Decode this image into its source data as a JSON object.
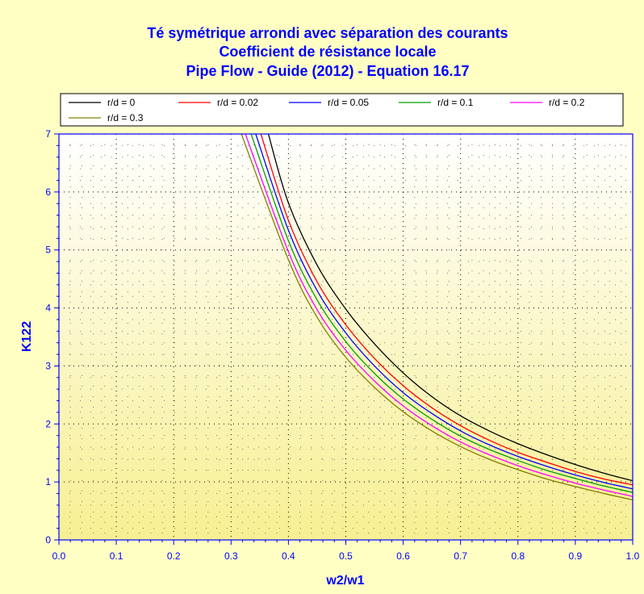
{
  "chart_data": {
    "type": "line",
    "title": [
      "Té symétrique arrondi avec séparation des courants",
      "Coefficient de résistance locale",
      "Pipe Flow - Guide (2012) - Equation 16.17"
    ],
    "xlabel": "w2/w1",
    "ylabel": "K122",
    "xlim": [
      0,
      1
    ],
    "ylim": [
      0,
      7
    ],
    "xticks": [
      "0.0",
      "0.1",
      "0.2",
      "0.3",
      "0.4",
      "0.5",
      "0.6",
      "0.7",
      "0.8",
      "0.9",
      "1.0"
    ],
    "yticks": [
      "0",
      "1",
      "2",
      "3",
      "4",
      "5",
      "6",
      "7"
    ],
    "grid": true,
    "legend_position": "top",
    "series": [
      {
        "name": "r/d = 0",
        "color": "#000000",
        "x": [
          0.365,
          0.4,
          0.45,
          0.5,
          0.55,
          0.6,
          0.65,
          0.7,
          0.75,
          0.8,
          0.85,
          0.9,
          0.95,
          1.0
        ],
        "y": [
          7.0,
          5.81,
          4.74,
          3.98,
          3.38,
          2.88,
          2.47,
          2.14,
          1.88,
          1.66,
          1.47,
          1.3,
          1.15,
          1.02
        ]
      },
      {
        "name": "r/d = 0.02",
        "color": "#ff0000",
        "x": [
          0.352,
          0.4,
          0.45,
          0.5,
          0.55,
          0.6,
          0.65,
          0.7,
          0.75,
          0.8,
          0.85,
          0.9,
          0.95,
          1.0
        ],
        "y": [
          7.0,
          5.51,
          4.45,
          3.71,
          3.13,
          2.66,
          2.28,
          1.97,
          1.72,
          1.51,
          1.34,
          1.18,
          1.05,
          0.95
        ]
      },
      {
        "name": "r/d = 0.05",
        "color": "#0000ff",
        "x": [
          0.343,
          0.4,
          0.45,
          0.5,
          0.55,
          0.6,
          0.65,
          0.7,
          0.75,
          0.8,
          0.85,
          0.9,
          0.95,
          1.0
        ],
        "y": [
          7.0,
          5.34,
          4.3,
          3.57,
          3.0,
          2.54,
          2.18,
          1.88,
          1.64,
          1.44,
          1.27,
          1.12,
          0.99,
          0.88
        ]
      },
      {
        "name": "r/d = 0.1",
        "color": "#00a000",
        "x": [
          0.335,
          0.4,
          0.45,
          0.5,
          0.55,
          0.6,
          0.65,
          0.7,
          0.75,
          0.8,
          0.85,
          0.9,
          0.95,
          1.0
        ],
        "y": [
          7.0,
          5.16,
          4.14,
          3.42,
          2.87,
          2.43,
          2.08,
          1.79,
          1.56,
          1.37,
          1.2,
          1.06,
          0.93,
          0.82
        ]
      },
      {
        "name": "r/d = 0.2",
        "color": "#ff00ff",
        "x": [
          0.325,
          0.4,
          0.45,
          0.5,
          0.55,
          0.6,
          0.65,
          0.7,
          0.75,
          0.8,
          0.85,
          0.9,
          0.95,
          1.0
        ],
        "y": [
          7.0,
          4.97,
          3.97,
          3.27,
          2.74,
          2.31,
          1.97,
          1.69,
          1.47,
          1.28,
          1.12,
          0.98,
          0.86,
          0.75
        ]
      },
      {
        "name": "r/d = 0.3",
        "color": "#808000",
        "x": [
          0.318,
          0.4,
          0.45,
          0.5,
          0.55,
          0.6,
          0.65,
          0.7,
          0.75,
          0.8,
          0.85,
          0.9,
          0.95,
          1.0
        ],
        "y": [
          7.0,
          4.83,
          3.84,
          3.15,
          2.63,
          2.21,
          1.88,
          1.61,
          1.39,
          1.21,
          1.05,
          0.92,
          0.8,
          0.69
        ]
      }
    ]
  },
  "colors": {
    "background": "#ffffc4",
    "title": "#0000ff",
    "axis": "#0000ff",
    "plot_top": "#ffffff",
    "plot_bottom": "#f7ef92"
  }
}
